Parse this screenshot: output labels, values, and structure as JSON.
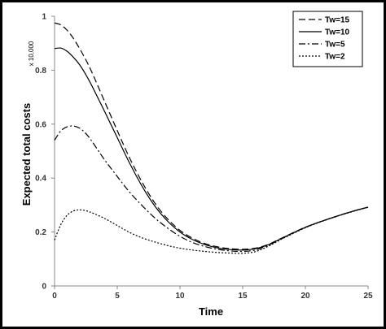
{
  "chart_data": {
    "type": "line",
    "xlabel": "Time",
    "ylabel": "Expected total costs",
    "y_multiplier_label": "x 10,000",
    "xlim": [
      0,
      25
    ],
    "ylim": [
      0,
      1
    ],
    "x_ticks": [
      "0",
      "5",
      "10",
      "15",
      "20",
      "25"
    ],
    "y_ticks": [
      "0",
      "0.2",
      "0.4",
      "0.6",
      "0.8",
      "1"
    ],
    "grid": false,
    "legend_position": "top-right",
    "x": [
      0,
      0.5,
      1,
      1.5,
      2,
      2.5,
      3,
      4,
      5,
      6,
      7,
      8,
      9,
      10,
      11,
      12,
      13,
      14,
      15,
      16,
      17,
      18,
      19,
      20,
      21,
      22,
      23,
      24,
      25
    ],
    "series": [
      {
        "name": "Tw=15",
        "dash": "8,4",
        "values": [
          0.975,
          0.968,
          0.948,
          0.918,
          0.88,
          0.838,
          0.79,
          0.683,
          0.576,
          0.473,
          0.383,
          0.307,
          0.249,
          0.206,
          0.177,
          0.157,
          0.145,
          0.138,
          0.136,
          0.14,
          0.153,
          0.175,
          0.197,
          0.218,
          0.235,
          0.251,
          0.266,
          0.28,
          0.292
        ]
      },
      {
        "name": "Tw=10",
        "dash": "",
        "values": [
          0.88,
          0.882,
          0.87,
          0.848,
          0.82,
          0.783,
          0.74,
          0.646,
          0.55,
          0.454,
          0.368,
          0.296,
          0.241,
          0.2,
          0.172,
          0.153,
          0.141,
          0.135,
          0.133,
          0.138,
          0.152,
          0.174,
          0.196,
          0.217,
          0.235,
          0.251,
          0.266,
          0.28,
          0.292
        ]
      },
      {
        "name": "Tw=5",
        "dash": "8,3,2,3",
        "values": [
          0.54,
          0.575,
          0.59,
          0.593,
          0.585,
          0.565,
          0.535,
          0.467,
          0.406,
          0.347,
          0.297,
          0.252,
          0.215,
          0.184,
          0.161,
          0.146,
          0.136,
          0.13,
          0.128,
          0.133,
          0.15,
          0.173,
          0.196,
          0.217,
          0.235,
          0.251,
          0.266,
          0.28,
          0.292
        ]
      },
      {
        "name": "Tw=2",
        "dash": "2,2",
        "values": [
          0.17,
          0.228,
          0.262,
          0.278,
          0.282,
          0.279,
          0.271,
          0.25,
          0.224,
          0.198,
          0.178,
          0.163,
          0.15,
          0.14,
          0.133,
          0.128,
          0.124,
          0.122,
          0.121,
          0.127,
          0.146,
          0.171,
          0.194,
          0.216,
          0.234,
          0.25,
          0.265,
          0.279,
          0.292
        ]
      }
    ]
  }
}
